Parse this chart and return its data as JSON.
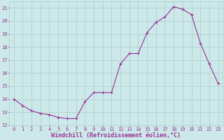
{
  "xlabel": "Windchill (Refroidissement éolien,°C)",
  "x": [
    0,
    1,
    2,
    3,
    4,
    5,
    6,
    7,
    8,
    9,
    10,
    11,
    12,
    13,
    14,
    15,
    16,
    17,
    18,
    19,
    20,
    21,
    22,
    23
  ],
  "y": [
    14.0,
    13.5,
    13.1,
    12.9,
    12.8,
    12.6,
    12.5,
    12.5,
    13.8,
    14.5,
    14.5,
    14.5,
    16.7,
    17.5,
    17.5,
    19.1,
    19.9,
    20.3,
    21.1,
    20.9,
    20.5,
    18.3,
    16.7,
    15.2
  ],
  "line_color": "#993399",
  "marker": "+",
  "marker_size": 3,
  "marker_linewidth": 0.8,
  "bg_color": "#cce8e8",
  "grid_color": "#aacccc",
  "ylim": [
    12,
    21.5
  ],
  "xlim": [
    -0.5,
    23.5
  ],
  "yticks": [
    12,
    13,
    14,
    15,
    16,
    17,
    18,
    19,
    20,
    21
  ],
  "xticks": [
    0,
    1,
    2,
    3,
    4,
    5,
    6,
    7,
    8,
    9,
    10,
    11,
    12,
    13,
    14,
    15,
    16,
    17,
    18,
    19,
    20,
    21,
    22,
    23
  ],
  "tick_color": "#993399",
  "label_color": "#993399",
  "tick_fontsize": 5.0,
  "xlabel_fontsize": 6.0,
  "line_width": 0.8
}
